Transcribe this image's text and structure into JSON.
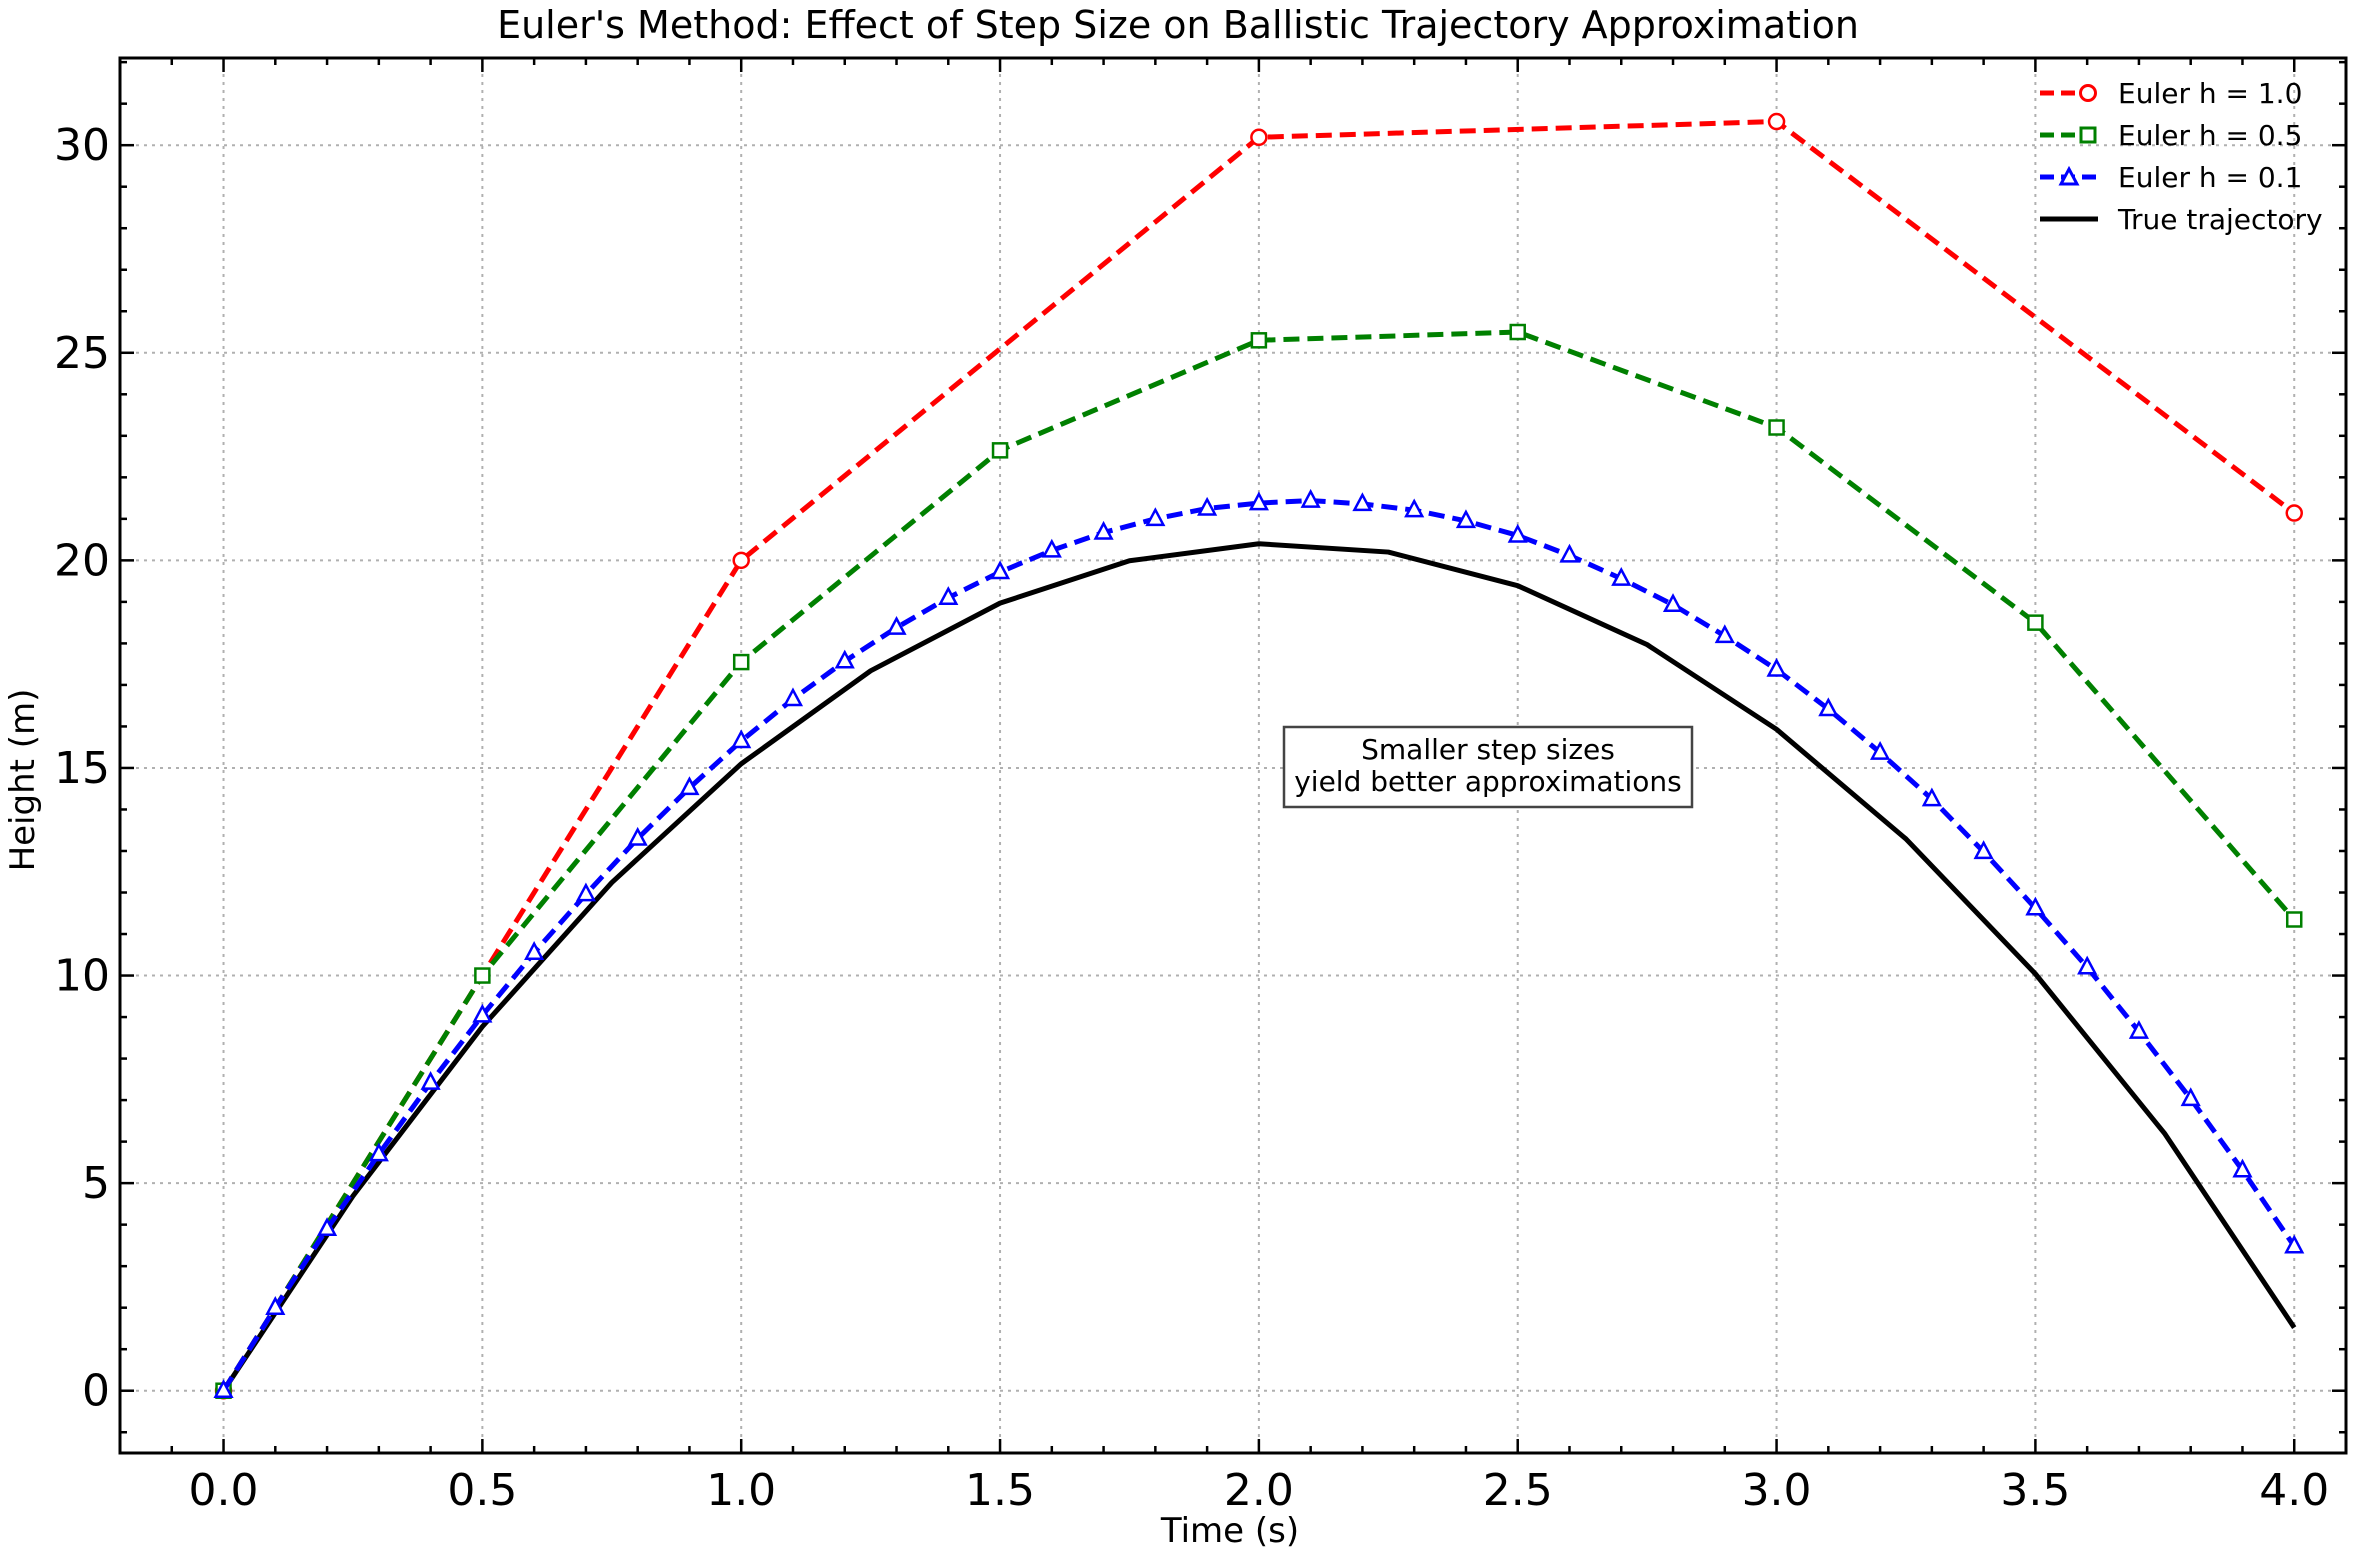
{
  "chart_data": {
    "type": "line",
    "title": "Euler's Method: Effect of Step Size on Ballistic Trajectory Approximation",
    "xlabel": "Time (s)",
    "ylabel": "Height (m)",
    "xlim": [
      -0.2,
      4.1
    ],
    "ylim": [
      -1.5,
      32.1
    ],
    "xticks": [
      0.0,
      0.5,
      1.0,
      1.5,
      2.0,
      2.5,
      3.0,
      3.5,
      4.0
    ],
    "xtick_labels": [
      "0.0",
      "0.5",
      "1.0",
      "1.5",
      "2.0",
      "2.5",
      "3.0",
      "3.5",
      "4.0"
    ],
    "yticks": [
      0,
      5,
      10,
      15,
      20,
      25,
      30
    ],
    "ytick_labels": [
      "0",
      "5",
      "10",
      "15",
      "20",
      "25",
      "30"
    ],
    "grid": true,
    "legend_position": "top-right",
    "annotation": {
      "lines": [
        "Smaller step sizes",
        "yield better approximations"
      ],
      "x": 2.5,
      "y": 15.0
    },
    "series": [
      {
        "name": "Euler h = 1.0",
        "color": "#ff0000",
        "marker": "circle",
        "linestyle": "dashed",
        "x": [
          0,
          1,
          2,
          3,
          4
        ],
        "y": [
          0,
          20,
          30.19,
          30.57,
          21.14
        ]
      },
      {
        "name": "Euler h = 0.5",
        "color": "#008000",
        "marker": "square",
        "linestyle": "dashed",
        "x": [
          0,
          0.5,
          1.0,
          1.5,
          2.0,
          2.5,
          3.0,
          3.5,
          4.0
        ],
        "y": [
          0,
          10,
          17.55,
          22.65,
          25.3,
          25.5,
          23.2,
          18.5,
          11.35
        ]
      },
      {
        "name": "Euler h = 0.1",
        "color": "#0000ff",
        "marker": "triangle",
        "linestyle": "dashed",
        "x": [
          0,
          0.1,
          0.2,
          0.3,
          0.4,
          0.5,
          0.6,
          0.7,
          0.8,
          0.9,
          1.0,
          1.1,
          1.2,
          1.3,
          1.4,
          1.5,
          1.6,
          1.7,
          1.8,
          1.9,
          2.0,
          2.1,
          2.2,
          2.3,
          2.4,
          2.5,
          2.6,
          2.7,
          2.8,
          2.9,
          3.0,
          3.1,
          3.2,
          3.3,
          3.4,
          3.5,
          3.6,
          3.7,
          3.8,
          3.9,
          4.0
        ],
        "y": [
          0,
          2.0,
          3.9,
          5.7,
          7.42,
          9.04,
          10.55,
          11.96,
          13.3,
          14.52,
          15.65,
          16.66,
          17.57,
          18.38,
          19.1,
          19.72,
          20.24,
          20.67,
          21.0,
          21.25,
          21.38,
          21.44,
          21.36,
          21.21,
          20.95,
          20.6,
          20.12,
          19.56,
          18.93,
          18.18,
          17.37,
          16.42,
          15.37,
          14.25,
          12.98,
          11.62,
          10.2,
          8.65,
          7.03,
          5.31,
          3.48
        ]
      },
      {
        "name": "True trajectory",
        "color": "#000000",
        "marker": "none",
        "linestyle": "solid",
        "x": [
          0,
          0.25,
          0.5,
          0.75,
          1.0,
          1.25,
          1.5,
          1.75,
          2.0,
          2.25,
          2.5,
          2.75,
          3.0,
          3.25,
          3.5,
          3.75,
          4.0
        ],
        "y": [
          0,
          4.69,
          8.77,
          12.24,
          15.1,
          17.34,
          18.97,
          19.99,
          20.4,
          20.2,
          19.39,
          17.97,
          15.93,
          13.29,
          10.04,
          6.19,
          1.52
        ]
      }
    ]
  }
}
